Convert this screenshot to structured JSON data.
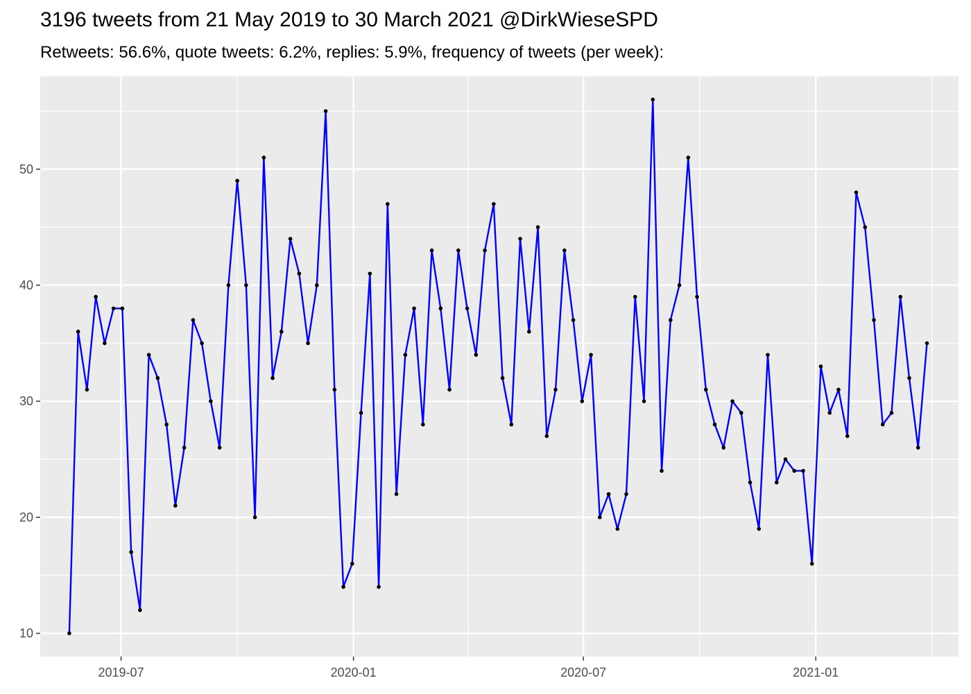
{
  "chart_data": {
    "type": "line",
    "title": "3196 tweets from 21 May 2019 to 30 March 2021 @DirkWieseSPD",
    "subtitle": "Retweets: 56.6%, quote tweets: 6.2%, replies: 5.9%, frequency of tweets (per week):",
    "xlabel": "",
    "ylabel": "",
    "x_start": "2019-05-21",
    "x_end": "2021-03-30",
    "xlim": [
      "2019-04-28",
      "2021-04-24"
    ],
    "ylim": [
      8,
      58
    ],
    "y_ticks": [
      10,
      20,
      30,
      40,
      50
    ],
    "x_ticks": [
      {
        "date": "2019-07-01",
        "label": "2019-07"
      },
      {
        "date": "2020-01-01",
        "label": "2020-01"
      },
      {
        "date": "2020-07-01",
        "label": "2020-07"
      },
      {
        "date": "2021-01-01",
        "label": "2021-01"
      }
    ],
    "grid": true,
    "line_color": "#0000ff",
    "point_color": "#000000",
    "panel_color": "#ebebeb",
    "series": [
      {
        "values": [
          10,
          36,
          31,
          39,
          35,
          38,
          38,
          17,
          12,
          34,
          32,
          28,
          21,
          26,
          37,
          35,
          30,
          26,
          40,
          49,
          40,
          20,
          51,
          32,
          36,
          44,
          41,
          35,
          40,
          55,
          31,
          14,
          16,
          29,
          41,
          14,
          47,
          22,
          34,
          38,
          28,
          43,
          38,
          31,
          43,
          38,
          34,
          43,
          47,
          32,
          28,
          44,
          36,
          45,
          27,
          31,
          43,
          37,
          30,
          34,
          20,
          22,
          19,
          22,
          39,
          30,
          56,
          24,
          37,
          40,
          51,
          39,
          31,
          28,
          26,
          30,
          29,
          23,
          19,
          34,
          23,
          25,
          24,
          24,
          16,
          33,
          29,
          31,
          27,
          48,
          45,
          37,
          28,
          29,
          39,
          32,
          26,
          35
        ]
      }
    ]
  }
}
